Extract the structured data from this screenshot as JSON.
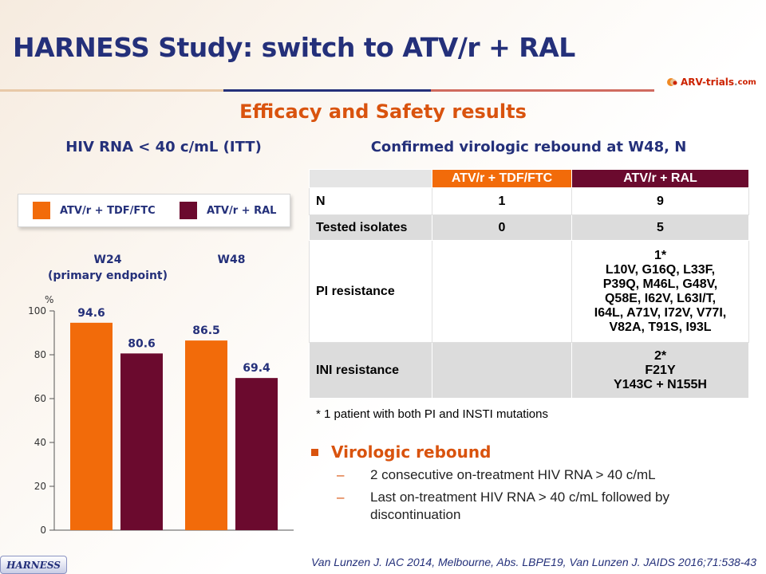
{
  "title": "HARNESS Study: switch to ATV/r + RAL",
  "logo": {
    "brand": "ARV-trials",
    "dot": ".",
    "tld": "com"
  },
  "subtitle": "Efficacy and Safety results",
  "chart_heading": "HIV RNA < 40 c/mL (ITT)",
  "table_heading": "Confirmed virologic rebound at W48, N",
  "colors": {
    "orange": "#f26b0a",
    "maroon": "#6b0a2e",
    "navy": "#24307a",
    "accent": "#d9530e"
  },
  "legend": [
    {
      "label": "ATV/r + TDF/FTC",
      "color": "#f26b0a"
    },
    {
      "label": "ATV/r + RAL",
      "color": "#6b0a2e"
    }
  ],
  "periods": {
    "w24_line1": "W24",
    "w24_line2": "(primary endpoint)",
    "w48": "W48"
  },
  "chart_data": {
    "type": "bar",
    "title": "HIV RNA < 40 c/mL (ITT)",
    "ylabel": "%",
    "ylim": [
      0,
      100
    ],
    "yticks": [
      0,
      20,
      40,
      60,
      80,
      100
    ],
    "categories": [
      "W24",
      "W48"
    ],
    "series": [
      {
        "name": "ATV/r + TDF/FTC",
        "values": [
          94.6,
          86.5
        ],
        "labels": [
          "94.6",
          "86.5"
        ],
        "color": "#f26b0a"
      },
      {
        "name": "ATV/r + RAL",
        "values": [
          80.6,
          69.4
        ],
        "labels": [
          "80.6",
          "69.4"
        ],
        "color": "#6b0a2e"
      }
    ],
    "grid": false
  },
  "table": {
    "headers": [
      "",
      "ATV/r + TDF/FTC",
      "ATV/r + RAL"
    ],
    "rows": [
      {
        "label": "N",
        "a": "1",
        "b": [
          "9"
        ]
      },
      {
        "label": "Tested isolates",
        "a": "0",
        "b": [
          "5"
        ]
      },
      {
        "label": "PI resistance",
        "a": "",
        "b": [
          "1*",
          "L10V, G16Q, L33F,",
          "P39Q, M46L, G48V,",
          "Q58E, I62V, L63I/T,",
          "I64L, A71V, I72V, V77I,",
          "V82A, T91S, I93L"
        ]
      },
      {
        "label": "INI resistance",
        "a": "",
        "b": [
          "2*",
          "F21Y",
          "Y143C + N155H"
        ]
      }
    ]
  },
  "footnote": "* 1 patient with both PI and INSTI mutations",
  "bullet": {
    "title": "Virologic rebound",
    "items": [
      [
        "2 consecutive on-treatment HIV RNA > 40 c/mL"
      ],
      [
        "Last on-treatment HIV RNA > 40 c/mL followed by",
        "discontinuation"
      ]
    ]
  },
  "badge": "HARNESS",
  "reference": "Van Lunzen J. IAC 2014, Melbourne, Abs. LBPE19, Van Lunzen J. JAIDS 2016;71:538-43"
}
